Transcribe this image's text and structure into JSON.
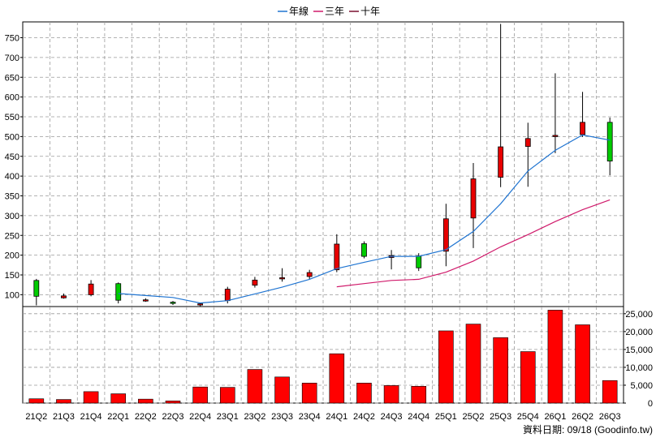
{
  "chart_data": {
    "type": "candlestick-with-volume",
    "legend": [
      {
        "label": "年線",
        "color": "#1f74d1"
      },
      {
        "label": "三年",
        "color": "#d01a6b"
      },
      {
        "label": "十年",
        "color": "#7a1030"
      }
    ],
    "categories": [
      "21Q2",
      "21Q3",
      "21Q4",
      "22Q1",
      "22Q2",
      "22Q3",
      "22Q4",
      "23Q1",
      "23Q2",
      "23Q3",
      "23Q4",
      "24Q1",
      "24Q2",
      "24Q3",
      "24Q4",
      "25Q1",
      "25Q2",
      "25Q3",
      "25Q4",
      "26Q1",
      "26Q2",
      "26Q3"
    ],
    "price_axis": {
      "ylim": [
        70,
        790
      ],
      "ticks": [
        100,
        150,
        200,
        250,
        300,
        350,
        400,
        450,
        500,
        550,
        600,
        650,
        700,
        750
      ]
    },
    "volume_axis": {
      "ylim": [
        0,
        27000
      ],
      "ticks": [
        0,
        5000,
        10000,
        15000,
        20000,
        25000
      ],
      "tick_labels": [
        "0",
        "5,000",
        "10,000",
        "15,000",
        "20,000",
        "25,000"
      ]
    },
    "candles": [
      {
        "open": 96,
        "high": 140,
        "low": 73,
        "close": 136,
        "color": "#00cc00"
      },
      {
        "open": 97,
        "high": 103,
        "low": 90,
        "close": 92,
        "color": "#e80000"
      },
      {
        "open": 127,
        "high": 137,
        "low": 96,
        "close": 100,
        "color": "#e80000"
      },
      {
        "open": 86,
        "high": 131,
        "low": 78,
        "close": 128,
        "color": "#00cc00"
      },
      {
        "open": 87,
        "high": 91,
        "low": 82,
        "close": 86,
        "color": "#e80000"
      },
      {
        "open": 78,
        "high": 84,
        "low": 74,
        "close": 81,
        "color": "#00cc00"
      },
      {
        "open": 77,
        "high": 80,
        "low": 71,
        "close": 75,
        "color": "#e80000"
      },
      {
        "open": 114,
        "high": 120,
        "low": 78,
        "close": 85,
        "color": "#e80000"
      },
      {
        "open": 137,
        "high": 145,
        "low": 118,
        "close": 124,
        "color": "#e80000"
      },
      {
        "open": 143,
        "high": 167,
        "low": 133,
        "close": 142,
        "color": "#e80000"
      },
      {
        "open": 156,
        "high": 163,
        "low": 138,
        "close": 146,
        "color": "#e80000"
      },
      {
        "open": 228,
        "high": 253,
        "low": 157,
        "close": 163,
        "color": "#e80000"
      },
      {
        "open": 197,
        "high": 235,
        "low": 192,
        "close": 229,
        "color": "#00cc00"
      },
      {
        "open": 199,
        "high": 213,
        "low": 164,
        "close": 194,
        "color": "#e80000"
      },
      {
        "open": 168,
        "high": 205,
        "low": 160,
        "close": 198,
        "color": "#00cc00"
      },
      {
        "open": 292,
        "high": 330,
        "low": 172,
        "close": 210,
        "color": "#e80000"
      },
      {
        "open": 393,
        "high": 433,
        "low": 218,
        "close": 294,
        "color": "#e80000"
      },
      {
        "open": 474,
        "high": 785,
        "low": 372,
        "close": 397,
        "color": "#e80000"
      },
      {
        "open": 495,
        "high": 535,
        "low": 373,
        "close": 475,
        "color": "#e80000"
      },
      {
        "open": 503,
        "high": 660,
        "low": 458,
        "close": 500,
        "color": "#e80000"
      },
      {
        "open": 536,
        "high": 613,
        "low": 499,
        "close": 505,
        "color": "#e80000"
      },
      {
        "open": 438,
        "high": 548,
        "low": 402,
        "close": 536,
        "color": "#00cc00"
      }
    ],
    "series": [
      {
        "name": "年線",
        "color": "#1f74d1",
        "values": [
          null,
          null,
          null,
          103,
          98,
          93,
          79,
          85,
          102,
          119,
          139,
          166,
          182,
          197,
          197,
          214,
          260,
          330,
          413,
          465,
          504,
          491
        ]
      },
      {
        "name": "三年",
        "color": "#d01a6b",
        "values": [
          null,
          null,
          null,
          null,
          null,
          null,
          null,
          null,
          null,
          null,
          null,
          120,
          128,
          136,
          139,
          157,
          185,
          221,
          252,
          285,
          315,
          340
        ]
      }
    ],
    "volume": [
      1200,
      1000,
      3200,
      2600,
      1100,
      600,
      4500,
      4400,
      9400,
      7300,
      5600,
      13800,
      5600,
      4900,
      4700,
      20200,
      22100,
      18300,
      14400,
      26000,
      21900,
      6300
    ],
    "volume_color": "#ff0000"
  },
  "footer": {
    "text": "資料日期: 09/18  (Goodinfo.tw)"
  }
}
